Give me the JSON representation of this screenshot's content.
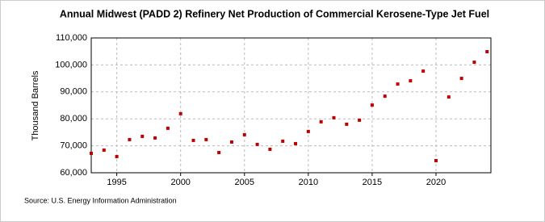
{
  "chart_data": {
    "type": "scatter",
    "title": "Annual Midwest (PADD 2) Refinery Net Production of Commercial Kerosene-Type Jet Fuel",
    "y_label": "Thousand Barrels",
    "source": "Source: U.S. Energy Information Administration",
    "color": "#c00000",
    "x": [
      1993,
      1994,
      1995,
      1996,
      1997,
      1998,
      1999,
      2000,
      2001,
      2002,
      2003,
      2004,
      2005,
      2006,
      2007,
      2008,
      2009,
      2010,
      2011,
      2012,
      2013,
      2014,
      2015,
      2016,
      2017,
      2018,
      2019,
      2020,
      2021,
      2022,
      2023,
      2024
    ],
    "values": [
      67200,
      68400,
      66000,
      72300,
      73500,
      72900,
      76500,
      81900,
      72000,
      72300,
      67500,
      71400,
      74100,
      70500,
      68700,
      71700,
      70800,
      75300,
      78900,
      80400,
      78000,
      79500,
      85100,
      88400,
      92900,
      94100,
      97700,
      64500,
      88100,
      95000,
      101000,
      104900
    ],
    "xlim": [
      1993,
      2024.3
    ],
    "xticks": [
      1995,
      2000,
      2005,
      2010,
      2015,
      2020
    ],
    "ylim": [
      60000,
      110000
    ],
    "yticks": [
      {
        "value": 60000,
        "label": "60,000"
      },
      {
        "value": 70000,
        "label": "70,000"
      },
      {
        "value": 80000,
        "label": "80,000"
      },
      {
        "value": 90000,
        "label": "90,000"
      },
      {
        "value": 100000,
        "label": "100,000"
      },
      {
        "value": 110000,
        "label": "110,000"
      }
    ],
    "grid": true
  }
}
